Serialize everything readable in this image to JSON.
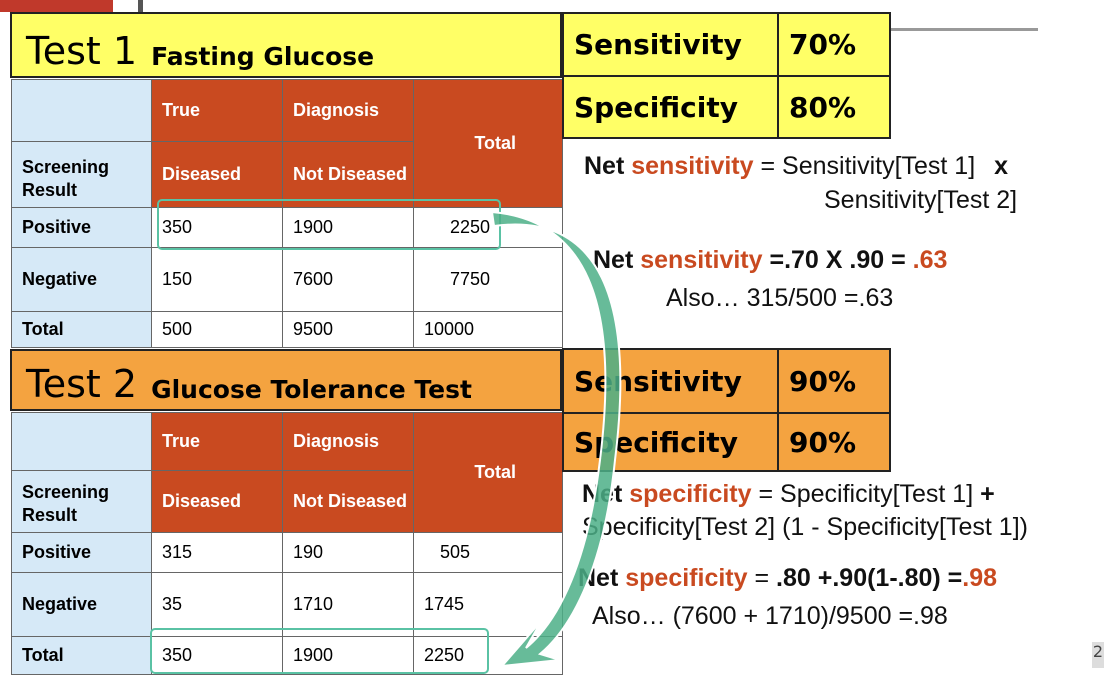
{
  "colors": {
    "yellow": "#ffff66",
    "orange": "#f4a340",
    "table_header": "#c94a20",
    "row_header": "#d6e9f7",
    "accent": "#c94a20",
    "highlight": "#5ac2a4"
  },
  "test1": {
    "title_num": "Test 1",
    "title_name": "Fasting Glucose",
    "header": {
      "true_label": "True",
      "diagnosis_label": "Diagnosis",
      "screening_result": "Screening Result",
      "diseased": "Diseased",
      "not_diseased": "Not Diseased",
      "total": "Total"
    },
    "rows": [
      {
        "label": "Positive",
        "diseased": "350",
        "not_diseased": "1900",
        "total": "2250"
      },
      {
        "label": "Negative",
        "diseased": "150",
        "not_diseased": "7600",
        "total": "7750"
      },
      {
        "label": "Total",
        "diseased": "500",
        "not_diseased": "9500",
        "total": "10000"
      }
    ],
    "sensitivity_label": "Sensitivity",
    "sensitivity_value": "70%",
    "specificity_label": "Specificity",
    "specificity_value": "80%"
  },
  "test2": {
    "title_num": "Test 2",
    "title_name": "Glucose Tolerance Test",
    "header": {
      "true_label": "True",
      "diagnosis_label": "Diagnosis",
      "screening_result": "Screening Result",
      "diseased": "Diseased",
      "not_diseased": "Not Diseased",
      "total": "Total"
    },
    "rows": [
      {
        "label": "Positive",
        "diseased": "315",
        "not_diseased": "190",
        "total": "505"
      },
      {
        "label": "Negative",
        "diseased": "35",
        "not_diseased": "1710",
        "total": "1745"
      },
      {
        "label": "Total",
        "diseased": "350",
        "not_diseased": "1900",
        "total": "2250"
      }
    ],
    "sensitivity_label": "Sensitivity",
    "sensitivity_value": "90%",
    "specificity_label": "Specificity",
    "specificity_value": "90%"
  },
  "notes": {
    "net_label": "Net",
    "sens_word": "sensitivity",
    "spec_word": "specificity",
    "sens_formula_1": "= Sensitivity[Test 1]",
    "sens_formula_x": "x",
    "sens_formula_2": "Sensitivity[Test 2]",
    "sens_calc": "=.70 X .90 =",
    "sens_result": ".63",
    "sens_also": "Also… 315/500 =.63",
    "spec_formula_1": "= Specificity[Test 1]",
    "spec_formula_plus": "+",
    "spec_formula_2": "Specificity[Test 2] (1 - Specificity[Test 1])",
    "spec_eq": "=",
    "spec_calc": ".80 +.90(1-.80) =",
    "spec_result": ".98",
    "spec_also": "Also… (7600 + 1710)/9500 =.98"
  },
  "page_number": "2"
}
